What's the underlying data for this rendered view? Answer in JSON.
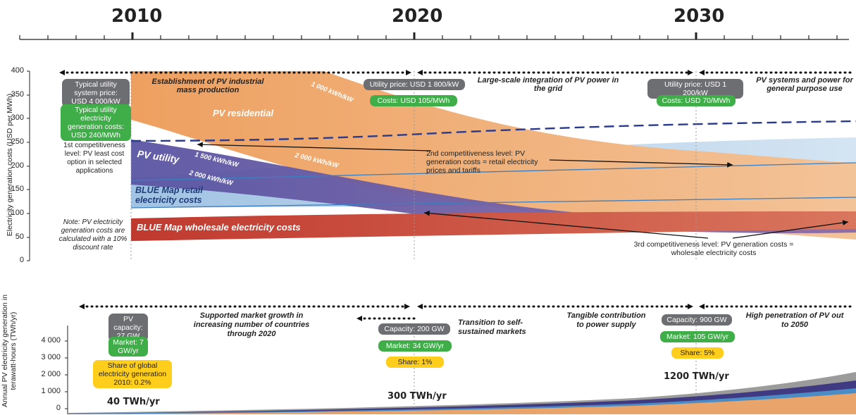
{
  "timeline": {
    "years": [
      "2010",
      "2020",
      "2030"
    ]
  },
  "top_chart": {
    "ylabel": "Electricity generation costs (USD per MWh)",
    "yticks": [
      "0",
      "50",
      "100",
      "150",
      "200",
      "250",
      "300",
      "350",
      "400"
    ],
    "phases": [
      "Establishment of PV industrial mass production",
      "Large-scale integration of PV power in the grid",
      "PV systems and power for general purpose use"
    ],
    "labels": {
      "pv_residential": "PV residential",
      "pv_utility": "PV utility",
      "retail": "BLUE Map retail electricity costs",
      "wholesale": "BLUE Map wholesale electricity costs",
      "kwh_1000": "1 000 kWh/kW",
      "kwh_2000_res": "2 000 kWh/kW",
      "kwh_1500": "1 500 kWh/kW",
      "kwh_2000_util": "2 000 kWh/kW"
    },
    "badges": {
      "utility_2010": "Typical utility system price: USD 4 000/kW",
      "cost_2010": "Typical utility electricity generation costs: USD 240/MWh",
      "utility_2020": "Utility price: USD 1 800/kW",
      "cost_2020": "Costs: USD 105/MWh",
      "utility_2030": "Utility price: USD 1 200/kW",
      "cost_2030": "Costs: USD 70/MWh"
    },
    "notes": {
      "first_level": "1st competitiveness level: PV least cost option in selected applications",
      "discount": "Note: PV electricity generation costs are calculated with a 10% discount rate",
      "second_level": "2nd competitiveness level: PV generation costs = retail electricity prices and tariffs",
      "third_level": "3rd competitiveness level: PV generation costs = wholesale electricity costs"
    },
    "colors": {
      "residential": "#f0a465",
      "utility": "#6a64ad",
      "retail": "#a9c8e4",
      "wholesale": "#c8473a",
      "dash": "#2a3a8c"
    }
  },
  "bottom_chart": {
    "ylabel": "Annual PV electricity generation in terawatt-hours (TWh/yr)",
    "yticks": [
      "0",
      "1 000",
      "2 000",
      "3 000",
      "4 000"
    ],
    "phases": [
      "Supported market growth in increasing number of countries through 2020",
      "Transition to self-sustained markets",
      "Tangible contribution to power supply",
      "High penetration of PV out to 2050"
    ],
    "badges": {
      "capacity_2010": "PV capacity: 27 GW",
      "market_2010": "Market: 7 GW/yr",
      "share_2010": "Share of global electricity generation 2010: 0.2%",
      "capacity_2020": "Capacity: 200 GW",
      "market_2020": "Market: 34 GW/yr",
      "share_2020": "Share: 1%",
      "capacity_2030": "Capacity: 900 GW",
      "market_2030": "Market: 105 GW/yr",
      "share_2030": "Share: 5%"
    },
    "values": {
      "v2010": "40 TWh/yr",
      "v2020": "300 TWh/yr",
      "v2030": "1200 TWh/yr"
    },
    "colors": {
      "gray": "#9b9b9b",
      "purple": "#3f3a82",
      "blue": "#4a8cc6",
      "orange": "#e9a46b"
    }
  }
}
